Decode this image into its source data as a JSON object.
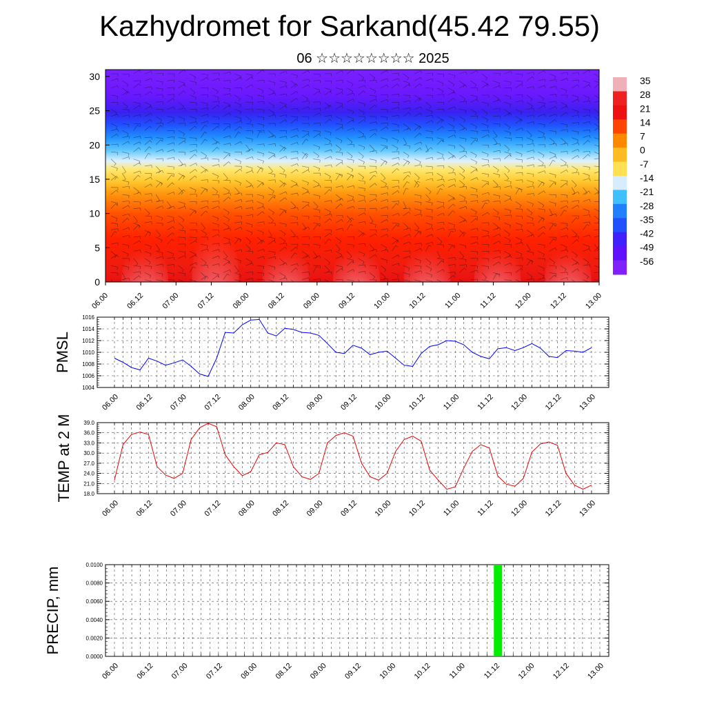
{
  "title": "Kazhydromet for Sarkand(45.42 79.55)",
  "subtitle": "06 ☆☆☆☆☆☆☆☆ 2025",
  "time_labels": [
    "06.00",
    "06.12",
    "07.00",
    "07.12",
    "08.00",
    "08.12",
    "09.00",
    "09.12",
    "10.00",
    "10.12",
    "11.00",
    "11.12",
    "12.00",
    "12.12",
    "13.00"
  ],
  "chart_data": [
    {
      "type": "heatmap",
      "name": "temperature-cross-section",
      "ylim": [
        0,
        31
      ],
      "y_ticks": [
        0,
        5,
        10,
        15,
        20,
        25,
        30
      ],
      "colorbar_labels": [
        "35",
        "28",
        "21",
        "14",
        "7",
        "0",
        "-7",
        "-14",
        "-21",
        "-28",
        "-35",
        "-42",
        "-49",
        "-56"
      ],
      "colorbar_colors": [
        "#f0b0b8",
        "#ee2020",
        "#ee1010",
        "#ff4400",
        "#ff8800",
        "#ffbb22",
        "#ffe050",
        "#d8ecff",
        "#40c0ff",
        "#2080ff",
        "#2050ff",
        "#4020ff",
        "#6010ff",
        "#8020ff"
      ]
    },
    {
      "type": "line",
      "name": "PMSL",
      "ylabel": "PMSL",
      "ylim": [
        1004,
        1016
      ],
      "y_ticks": [
        "1004",
        "1006",
        "1008",
        "1010",
        "1012",
        "1014",
        "1016"
      ],
      "color": "#0000ff",
      "values": [
        1009.0,
        1008.3,
        1007.4,
        1007.0,
        1009.0,
        1008.5,
        1007.8,
        1008.2,
        1008.7,
        1007.6,
        1006.3,
        1005.9,
        1009.0,
        1013.4,
        1013.3,
        1014.7,
        1015.5,
        1015.6,
        1013.3,
        1012.8,
        1014.1,
        1013.9,
        1013.4,
        1013.3,
        1012.9,
        1011.5,
        1010.0,
        1009.8,
        1011.2,
        1010.7,
        1009.6,
        1010.0,
        1010.2,
        1009.0,
        1007.8,
        1007.6,
        1009.8,
        1011.0,
        1011.3,
        1012.0,
        1011.9,
        1011.3,
        1010.0,
        1009.3,
        1008.9,
        1010.6,
        1010.8,
        1010.3,
        1010.8,
        1011.5,
        1010.7,
        1009.3,
        1009.1,
        1010.3,
        1010.2,
        1010.0,
        1010.8
      ]
    },
    {
      "type": "line",
      "name": "TEMP at 2 M",
      "ylabel": "TEMP at 2 M",
      "ylim": [
        18,
        39
      ],
      "y_ticks": [
        "18.0",
        "21.0",
        "24.0",
        "27.0",
        "30.0",
        "33.0",
        "36.0",
        "39.0"
      ],
      "color": "#ee0000",
      "values": [
        22.0,
        32.5,
        35.5,
        36.2,
        35.5,
        26.0,
        23.5,
        22.5,
        24.0,
        34.0,
        37.5,
        38.8,
        37.8,
        29.5,
        26.0,
        23.3,
        24.5,
        29.5,
        30.2,
        33.0,
        32.5,
        26.0,
        23.0,
        22.2,
        24.0,
        33.0,
        35.2,
        36.0,
        35.0,
        27.0,
        23.0,
        22.0,
        24.0,
        30.5,
        34.0,
        35.0,
        33.5,
        25.0,
        22.0,
        19.3,
        20.0,
        25.5,
        30.5,
        32.5,
        31.5,
        23.2,
        20.8,
        20.2,
        22.5,
        30.3,
        32.7,
        33.3,
        32.3,
        24.0,
        20.5,
        19.3,
        20.5
      ]
    },
    {
      "type": "bar",
      "name": "PRECIP",
      "ylabel": "PRECIP, mm",
      "ylim": [
        0,
        0.01
      ],
      "y_ticks": [
        "0.0000",
        "0.0020",
        "0.0040",
        "0.0060",
        "0.0080",
        "0.0100"
      ],
      "color": "#00ee00",
      "bars": [
        {
          "t": 44.25,
          "value": 0.01
        }
      ]
    }
  ]
}
